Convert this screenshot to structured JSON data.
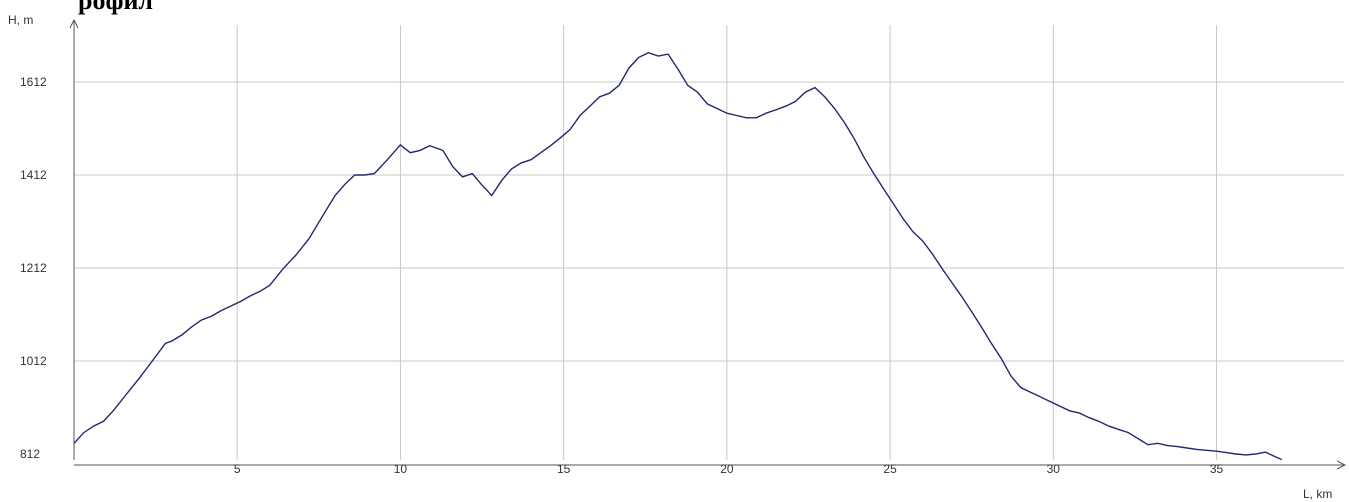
{
  "chart_data": {
    "type": "line",
    "title_fragment": "рофил",
    "xlabel": "L, km",
    "ylabel": "H, m",
    "xlim": [
      0,
      39
    ],
    "ylim": [
      780,
      1680
    ],
    "x_ticks": [
      5,
      10,
      15,
      20,
      25,
      30,
      35
    ],
    "y_ticks": [
      812,
      1012,
      1212,
      1412,
      1612
    ],
    "grid": true,
    "legend": "none",
    "colors": {
      "series": "#1f2a6b",
      "grid": "#c8c8c8"
    },
    "series": [
      {
        "x": [
          0,
          0.3,
          0.6,
          0.9,
          1.2,
          1.6,
          2.0,
          2.4,
          2.8,
          3.0,
          3.3,
          3.6,
          3.9,
          4.2,
          4.5,
          4.8,
          5.1,
          5.4,
          5.7,
          6.0,
          6.4,
          6.8,
          7.2,
          7.6,
          8.0,
          8.3,
          8.6,
          8.9,
          9.2,
          9.6,
          10.0,
          10.3,
          10.6,
          10.9,
          11.3,
          11.6,
          11.9,
          12.2,
          12.5,
          12.8,
          13.1,
          13.4,
          13.7,
          14.0,
          14.3,
          14.6,
          14.9,
          15.2,
          15.5,
          15.8,
          16.1,
          16.4,
          16.7,
          17.0,
          17.3,
          17.6,
          17.9,
          18.2,
          18.5,
          18.8,
          19.1,
          19.4,
          19.7,
          20.0,
          20.3,
          20.6,
          20.9,
          21.2,
          21.5,
          21.8,
          22.1,
          22.4,
          22.7,
          23.0,
          23.3,
          23.6,
          23.9,
          24.2,
          24.5,
          24.8,
          25.1,
          25.4,
          25.7,
          26.0,
          26.3,
          26.6,
          26.9,
          27.2,
          27.5,
          27.8,
          28.1,
          28.4,
          28.7,
          29.0,
          29.3,
          29.6,
          29.9,
          30.2,
          30.5,
          30.8,
          31.1,
          31.4,
          31.7,
          32.0,
          32.3,
          32.6,
          32.9,
          33.2,
          33.5,
          33.8,
          34.1,
          34.4,
          34.7,
          35.0,
          35.3,
          35.6,
          35.9,
          36.2,
          36.5,
          36.8,
          37.0
        ],
        "y": [
          835,
          858,
          872,
          882,
          905,
          940,
          975,
          1012,
          1050,
          1055,
          1068,
          1085,
          1100,
          1108,
          1120,
          1130,
          1140,
          1152,
          1162,
          1175,
          1210,
          1240,
          1275,
          1322,
          1368,
          1392,
          1412,
          1412,
          1415,
          1445,
          1477,
          1460,
          1465,
          1475,
          1465,
          1430,
          1408,
          1415,
          1390,
          1368,
          1400,
          1425,
          1438,
          1445,
          1460,
          1475,
          1492,
          1510,
          1540,
          1560,
          1580,
          1588,
          1605,
          1642,
          1665,
          1675,
          1668,
          1672,
          1640,
          1605,
          1590,
          1565,
          1555,
          1545,
          1540,
          1535,
          1535,
          1545,
          1552,
          1560,
          1570,
          1590,
          1600,
          1580,
          1555,
          1525,
          1490,
          1450,
          1415,
          1382,
          1350,
          1318,
          1290,
          1270,
          1242,
          1210,
          1180,
          1150,
          1118,
          1085,
          1050,
          1018,
          980,
          955,
          945,
          935,
          925,
          915,
          905,
          900,
          890,
          882,
          872,
          865,
          858,
          845,
          832,
          835,
          830,
          828,
          825,
          822,
          820,
          818,
          815,
          812,
          810,
          812,
          816,
          806,
          800
        ]
      }
    ]
  }
}
